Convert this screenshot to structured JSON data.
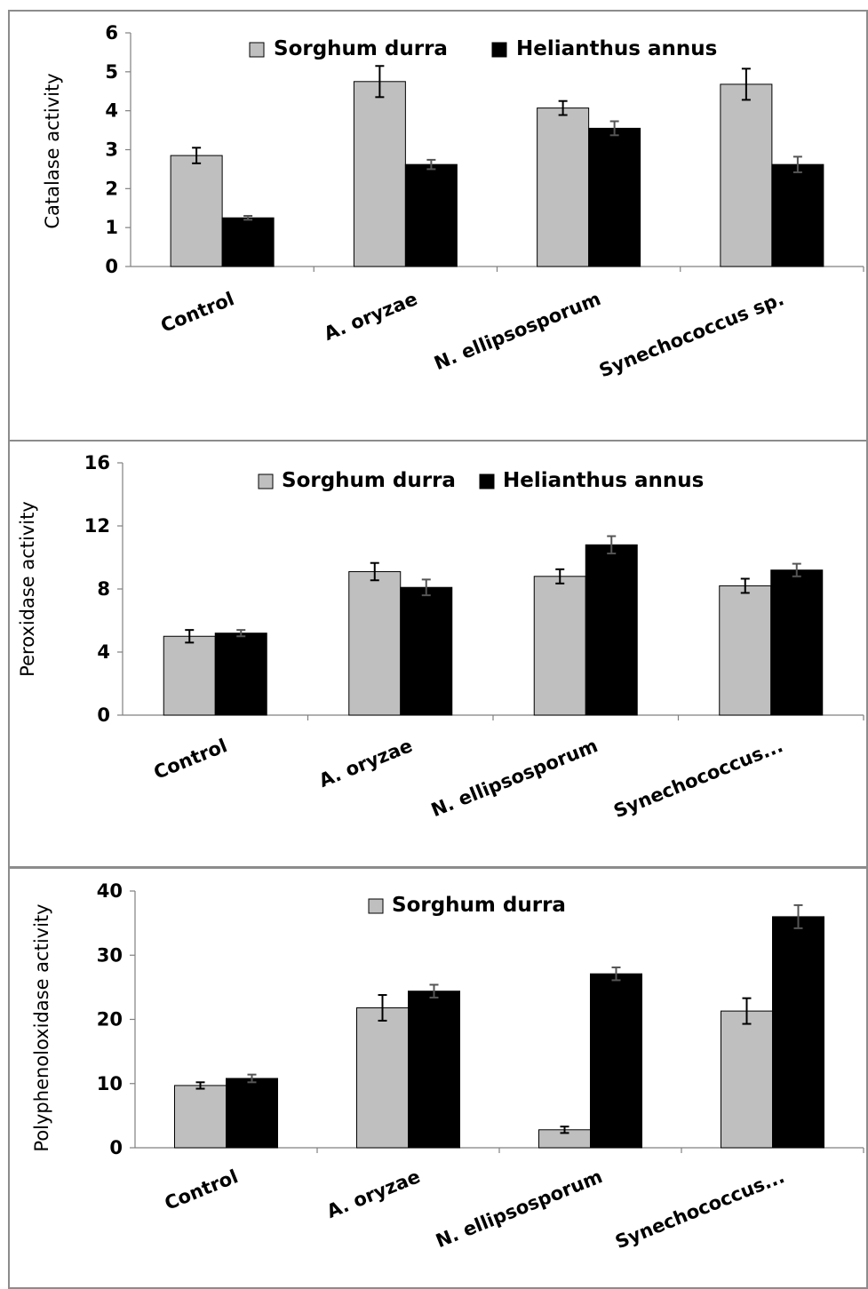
{
  "chart_data": [
    {
      "type": "bar",
      "ylabel": "Catalase activity",
      "categories": [
        "Control",
        "A. oryzae",
        "N. ellipsosporum",
        "Synechococcus sp."
      ],
      "ylim": [
        0,
        6
      ],
      "yticks": [
        0,
        1,
        2,
        3,
        4,
        5,
        6
      ],
      "legend": {
        "placement": "top-center",
        "entries": [
          "Sorghum durra",
          "Helianthus annus"
        ]
      },
      "series": [
        {
          "name": "Sorghum durra",
          "color": "#bfbfbf",
          "values": [
            2.85,
            4.75,
            4.07,
            4.68
          ],
          "errors": [
            0.2,
            0.4,
            0.18,
            0.4
          ]
        },
        {
          "name": "Helianthus annus",
          "color": "#000000",
          "values": [
            1.25,
            2.62,
            3.55,
            2.62
          ],
          "errors": [
            0.05,
            0.12,
            0.18,
            0.2
          ]
        }
      ]
    },
    {
      "type": "bar",
      "ylabel": "Peroxidase activity",
      "categories": [
        "Control",
        "A. oryzae",
        "N. ellipsosporum",
        "Synechococcus..."
      ],
      "ylim": [
        0,
        16
      ],
      "yticks": [
        0,
        4,
        8,
        12,
        16
      ],
      "legend": {
        "placement": "top-center",
        "entries": [
          "Sorghum durra",
          "Helianthus annus"
        ]
      },
      "series": [
        {
          "name": "Sorghum durra",
          "color": "#bfbfbf",
          "values": [
            5.0,
            9.1,
            8.8,
            8.2
          ],
          "errors": [
            0.4,
            0.55,
            0.45,
            0.45
          ]
        },
        {
          "name": "Helianthus annus",
          "color": "#000000",
          "values": [
            5.2,
            8.1,
            10.8,
            9.2
          ],
          "errors": [
            0.2,
            0.5,
            0.55,
            0.4
          ]
        }
      ]
    },
    {
      "type": "bar",
      "ylabel": "Polyphenoloxidase activity",
      "categories": [
        "Control",
        "A. oryzae",
        "N. ellipsosporum",
        "Synechococcus..."
      ],
      "ylim": [
        0,
        40
      ],
      "yticks": [
        0,
        10,
        20,
        30,
        40
      ],
      "legend": {
        "placement": "top-center",
        "entries": [
          "Sorghum durra"
        ]
      },
      "series": [
        {
          "name": "Sorghum durra",
          "color": "#bfbfbf",
          "values": [
            9.7,
            21.8,
            2.8,
            21.3
          ],
          "errors": [
            0.5,
            2.0,
            0.5,
            2.0
          ]
        },
        {
          "color": "#000000",
          "values": [
            10.8,
            24.4,
            27.1,
            36.0
          ],
          "errors": [
            0.6,
            1.0,
            1.0,
            1.8
          ]
        }
      ]
    }
  ]
}
